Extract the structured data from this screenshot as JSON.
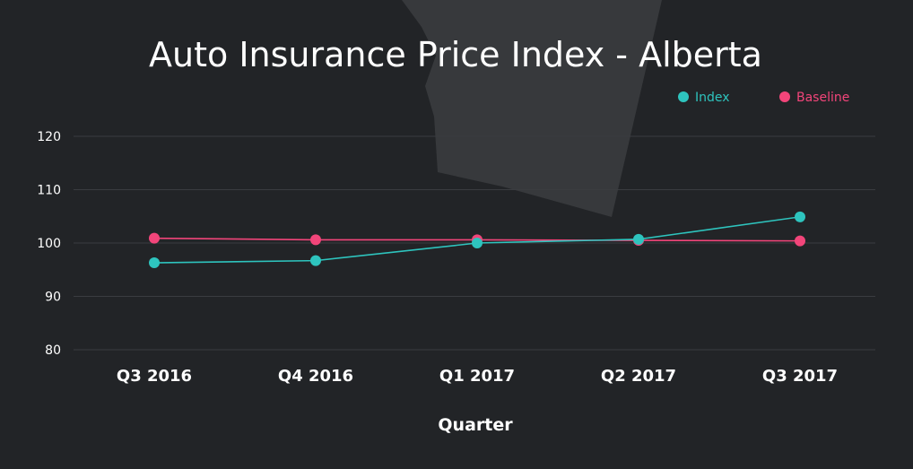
{
  "chart_data": {
    "type": "line",
    "title": "Auto Insurance Price Index - Alberta",
    "xlabel": "Quarter",
    "ylabel": "",
    "categories": [
      "Q3 2016",
      "Q4 2016",
      "Q1 2017",
      "Q2 2017",
      "Q3 2017"
    ],
    "series": [
      {
        "name": "Index",
        "color": "#2ec4be",
        "values": [
          96.3,
          96.7,
          100.0,
          100.7,
          104.9
        ]
      },
      {
        "name": "Baseline",
        "color": "#f2457a",
        "values": [
          100.9,
          100.6,
          100.6,
          100.5,
          100.4
        ]
      }
    ],
    "yticks": [
      80,
      90,
      100,
      110,
      120
    ],
    "ylim": [
      80,
      120
    ],
    "grid": true,
    "legend_position": "top-right"
  }
}
